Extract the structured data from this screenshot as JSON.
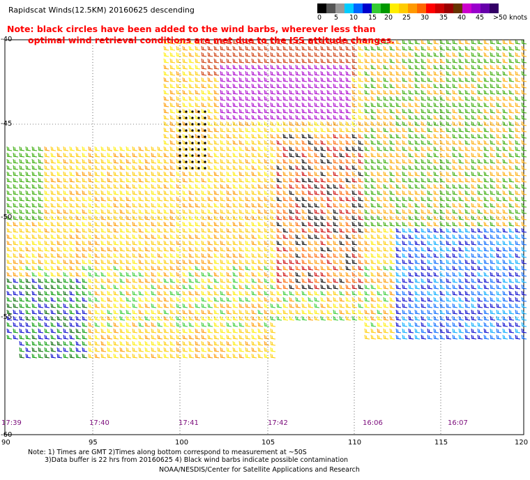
{
  "title": "Rapidscat Winds(12.5KM) 20160625 descending",
  "note_line1": "Note: black circles have been added to the wind barbs, wherever less than",
  "note_line2": "optimal wind retrieval conditions are met due to the ISS attitude changes.",
  "legend": {
    "labels": [
      "0",
      "5",
      "10",
      "15",
      "20",
      "25",
      "30",
      "35",
      "40",
      "45",
      ">50 knots"
    ],
    "colors": [
      "#000000",
      "#555555",
      "#999999",
      "#00ccff",
      "#0066ff",
      "#0000cc",
      "#33cc33",
      "#009900",
      "#ffee00",
      "#ffcc00",
      "#ff9900",
      "#ff6600",
      "#ff0000",
      "#cc0000",
      "#990000",
      "#663300",
      "#cc00cc",
      "#9900cc",
      "#6600aa",
      "#330066"
    ]
  },
  "lat_labels": [
    "-40",
    "-45",
    "-50",
    "-55",
    "-60"
  ],
  "lon_labels": [
    "90",
    "95",
    "100",
    "105",
    "110",
    "115",
    "120"
  ],
  "time_labels": [
    "17:39",
    "17:40",
    "17:41",
    "17:42",
    "16:06",
    "16:07"
  ],
  "footer": {
    "line1": "Note: 1) Times are GMT 2)Times along bottom correspond to measurement at ~50S",
    "line2": "3)Data buffer is 22 hrs from 20160625 4) Black wind barbs indicate possible contamination",
    "line3": "NOAA/NESDIS/Center for Satellite Applications and Research"
  }
}
